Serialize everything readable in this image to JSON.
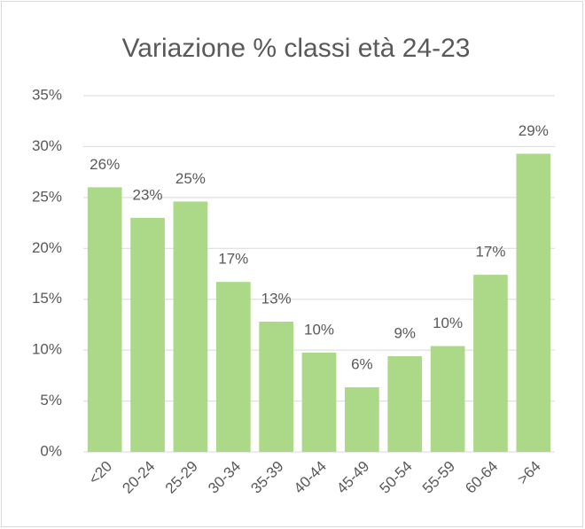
{
  "chart_data": {
    "type": "bar",
    "title": "Variazione % classi età 24-23",
    "categories": [
      "<20",
      "20-24",
      "25-29",
      "30-34",
      "35-39",
      "40-44",
      "45-49",
      "50-54",
      "55-59",
      "60-64",
      ">64"
    ],
    "values": [
      26.0,
      23.0,
      24.6,
      16.7,
      12.8,
      9.75,
      6.35,
      9.4,
      10.4,
      17.4,
      29.3
    ],
    "value_labels": [
      "26%",
      "23%",
      "25%",
      "17%",
      "13%",
      "10%",
      "6%",
      "9%",
      "10%",
      "17%",
      "29%"
    ],
    "color": "#abd987",
    "ylim": [
      0,
      35
    ],
    "yticks": [
      {
        "value": 0,
        "label": "0%"
      },
      {
        "value": 5,
        "label": "5%"
      },
      {
        "value": 10,
        "label": "10%"
      },
      {
        "value": 15,
        "label": "15%"
      },
      {
        "value": 20,
        "label": "20%"
      },
      {
        "value": 25,
        "label": "25%"
      },
      {
        "value": 30,
        "label": "30%"
      },
      {
        "value": 35,
        "label": "35%"
      }
    ],
    "grid": true
  }
}
